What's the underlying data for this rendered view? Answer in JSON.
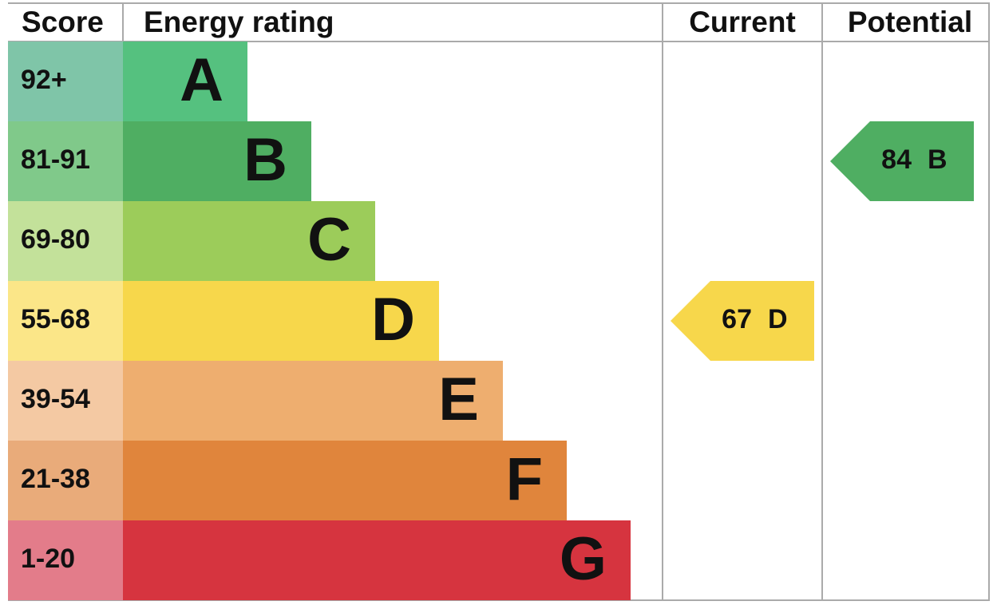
{
  "header": {
    "score": "Score",
    "energy_rating": "Energy rating",
    "current": "Current",
    "potential": "Potential"
  },
  "bands": [
    {
      "score": "92+",
      "letter": "A",
      "color": "#55c17f",
      "score_color": "#7fc5a8"
    },
    {
      "score": "81-91",
      "letter": "B",
      "color": "#4fae62",
      "score_color": "#80c98a"
    },
    {
      "score": "69-80",
      "letter": "C",
      "color": "#9ccc5a",
      "score_color": "#c3e19a"
    },
    {
      "score": "55-68",
      "letter": "D",
      "color": "#f7d74b",
      "score_color": "#fbe688"
    },
    {
      "score": "39-54",
      "letter": "E",
      "color": "#eeae6f",
      "score_color": "#f4c9a3"
    },
    {
      "score": "21-38",
      "letter": "F",
      "color": "#e0853c",
      "score_color": "#e9ab7a"
    },
    {
      "score": "1-20",
      "letter": "G",
      "color": "#d6343f",
      "score_color": "#e37c8a"
    }
  ],
  "current": {
    "value": 67,
    "letter": "D"
  },
  "potential": {
    "value": 84,
    "letter": "B"
  }
}
